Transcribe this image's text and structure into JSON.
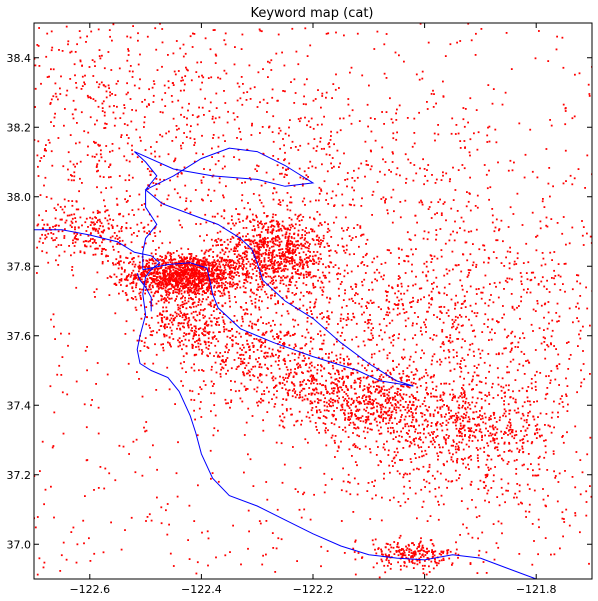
{
  "chart_data": {
    "type": "scatter",
    "title": "Keyword map (cat)",
    "xlabel": "",
    "ylabel": "",
    "xlim": [
      -122.7,
      -121.7
    ],
    "ylim": [
      36.9,
      38.5
    ],
    "xticks": [
      -122.6,
      -122.4,
      -122.2,
      -122.0,
      -121.8
    ],
    "xtick_labels": [
      "−122.6",
      "−122.4",
      "−122.2",
      "−122.0",
      "−121.8"
    ],
    "yticks": [
      37.0,
      37.2,
      37.4,
      37.6,
      37.8,
      38.0,
      38.2,
      38.4
    ],
    "ytick_labels": [
      "37.0",
      "37.2",
      "37.4",
      "37.6",
      "37.8",
      "38.0",
      "38.2",
      "38.4"
    ],
    "grid": false,
    "legend": "none",
    "colors": {
      "points": "#ff0000",
      "coastline": "#0000ff",
      "axes": "#000000"
    },
    "point_clusters": [
      {
        "lon": -122.43,
        "lat": 37.775,
        "spread_lon": 0.05,
        "spread_lat": 0.03,
        "weight": 0.18
      },
      {
        "lon": -122.27,
        "lat": 37.84,
        "spread_lon": 0.05,
        "spread_lat": 0.06,
        "weight": 0.12
      },
      {
        "lon": -122.6,
        "lat": 37.9,
        "spread_lon": 0.05,
        "spread_lat": 0.04,
        "weight": 0.03
      },
      {
        "lon": -122.08,
        "lat": 37.4,
        "spread_lon": 0.08,
        "spread_lat": 0.05,
        "weight": 0.06
      },
      {
        "lon": -121.92,
        "lat": 37.33,
        "spread_lon": 0.08,
        "spread_lat": 0.05,
        "weight": 0.06
      },
      {
        "lon": -122.18,
        "lat": 37.45,
        "spread_lon": 0.08,
        "spread_lat": 0.05,
        "weight": 0.05
      },
      {
        "lon": -122.3,
        "lat": 37.55,
        "spread_lon": 0.08,
        "spread_lat": 0.06,
        "weight": 0.05
      },
      {
        "lon": -122.02,
        "lat": 36.97,
        "spread_lon": 0.04,
        "spread_lat": 0.02,
        "weight": 0.03
      },
      {
        "lon": -122.0,
        "lat": 37.7,
        "spread_lon": 0.12,
        "spread_lat": 0.08,
        "weight": 0.04
      },
      {
        "lon": -122.55,
        "lat": 38.05,
        "spread_lon": 0.1,
        "spread_lat": 0.12,
        "weight": 0.03
      },
      {
        "lon": -122.62,
        "lat": 38.35,
        "spread_lon": 0.08,
        "spread_lat": 0.1,
        "weight": 0.02
      },
      {
        "lon": -122.4,
        "lat": 38.3,
        "spread_lon": 0.12,
        "spread_lat": 0.12,
        "weight": 0.02
      },
      {
        "lon": -122.0,
        "lat": 38.0,
        "spread_lon": 0.15,
        "spread_lat": 0.15,
        "weight": 0.03
      },
      {
        "lon": -121.85,
        "lat": 37.2,
        "spread_lon": 0.08,
        "spread_lat": 0.08,
        "weight": 0.02
      },
      {
        "lon": -122.05,
        "lat": 37.25,
        "spread_lon": 0.1,
        "spread_lat": 0.08,
        "weight": 0.02
      },
      {
        "lon": -121.78,
        "lat": 37.7,
        "spread_lon": 0.06,
        "spread_lat": 0.15,
        "weight": 0.02
      },
      {
        "lon": -122.2,
        "lat": 38.1,
        "spread_lon": 0.15,
        "spread_lat": 0.12,
        "weight": 0.03
      },
      {
        "lon": -122.2,
        "lat": 37.7,
        "spread_lon": 0.15,
        "spread_lat": 0.1,
        "weight": 0.04
      },
      {
        "lon": -121.9,
        "lat": 37.5,
        "spread_lon": 0.1,
        "spread_lat": 0.08,
        "weight": 0.03
      },
      {
        "lon": -122.43,
        "lat": 37.65,
        "spread_lon": 0.04,
        "spread_lat": 0.05,
        "weight": 0.04
      }
    ],
    "coastline_outer": [
      [
        -122.7,
        37.905
      ],
      [
        -122.65,
        37.905
      ],
      [
        -122.6,
        37.89
      ],
      [
        -122.55,
        37.87
      ],
      [
        -122.52,
        37.84
      ],
      [
        -122.49,
        37.83
      ],
      [
        -122.475,
        37.81
      ],
      [
        -122.49,
        37.79
      ],
      [
        -122.5,
        37.77
      ],
      [
        -122.505,
        37.72
      ],
      [
        -122.5,
        37.66
      ],
      [
        -122.51,
        37.6
      ],
      [
        -122.515,
        37.56
      ],
      [
        -122.51,
        37.52
      ],
      [
        -122.49,
        37.5
      ],
      [
        -122.46,
        37.48
      ],
      [
        -122.44,
        37.44
      ],
      [
        -122.42,
        37.37
      ],
      [
        -122.41,
        37.32
      ],
      [
        -122.4,
        37.26
      ],
      [
        -122.38,
        37.19
      ],
      [
        -122.35,
        37.14
      ],
      [
        -122.3,
        37.11
      ],
      [
        -122.25,
        37.07
      ],
      [
        -122.2,
        37.03
      ],
      [
        -122.15,
        36.995
      ],
      [
        -122.1,
        36.97
      ],
      [
        -122.05,
        36.96
      ],
      [
        -122.0,
        36.955
      ],
      [
        -121.95,
        36.97
      ],
      [
        -121.9,
        36.96
      ],
      [
        -121.85,
        36.93
      ],
      [
        -121.8,
        36.9
      ]
    ],
    "coastline_bay": [
      [
        -122.505,
        37.79
      ],
      [
        -122.46,
        37.805
      ],
      [
        -122.42,
        37.81
      ],
      [
        -122.39,
        37.795
      ],
      [
        -122.385,
        37.76
      ],
      [
        -122.38,
        37.72
      ],
      [
        -122.37,
        37.68
      ],
      [
        -122.33,
        37.62
      ],
      [
        -122.27,
        37.58
      ],
      [
        -122.2,
        37.54
      ],
      [
        -122.12,
        37.5
      ],
      [
        -122.08,
        37.47
      ],
      [
        -122.02,
        37.455
      ],
      [
        -122.05,
        37.47
      ],
      [
        -122.1,
        37.52
      ],
      [
        -122.15,
        37.58
      ],
      [
        -122.2,
        37.65
      ],
      [
        -122.25,
        37.7
      ],
      [
        -122.29,
        37.76
      ],
      [
        -122.3,
        37.81
      ],
      [
        -122.31,
        37.85
      ],
      [
        -122.33,
        37.88
      ],
      [
        -122.37,
        37.92
      ],
      [
        -122.42,
        37.95
      ],
      [
        -122.47,
        37.98
      ],
      [
        -122.5,
        38.02
      ],
      [
        -122.45,
        38.06
      ],
      [
        -122.4,
        38.11
      ],
      [
        -122.35,
        38.14
      ],
      [
        -122.3,
        38.13
      ],
      [
        -122.25,
        38.09
      ],
      [
        -122.2,
        38.04
      ],
      [
        -122.25,
        38.03
      ],
      [
        -122.3,
        38.05
      ],
      [
        -122.38,
        38.06
      ],
      [
        -122.45,
        38.08
      ],
      [
        -122.52,
        38.13
      ],
      [
        -122.5,
        38.1
      ],
      [
        -122.48,
        38.06
      ],
      [
        -122.5,
        38.02
      ],
      [
        -122.5,
        37.97
      ],
      [
        -122.48,
        37.92
      ],
      [
        -122.5,
        37.88
      ],
      [
        -122.505,
        37.84
      ],
      [
        -122.505,
        37.79
      ]
    ],
    "coastline_sf_shore": [
      [
        -122.515,
        37.78
      ],
      [
        -122.51,
        37.76
      ],
      [
        -122.5,
        37.74
      ],
      [
        -122.49,
        37.71
      ],
      [
        -122.49,
        37.67
      ]
    ]
  }
}
